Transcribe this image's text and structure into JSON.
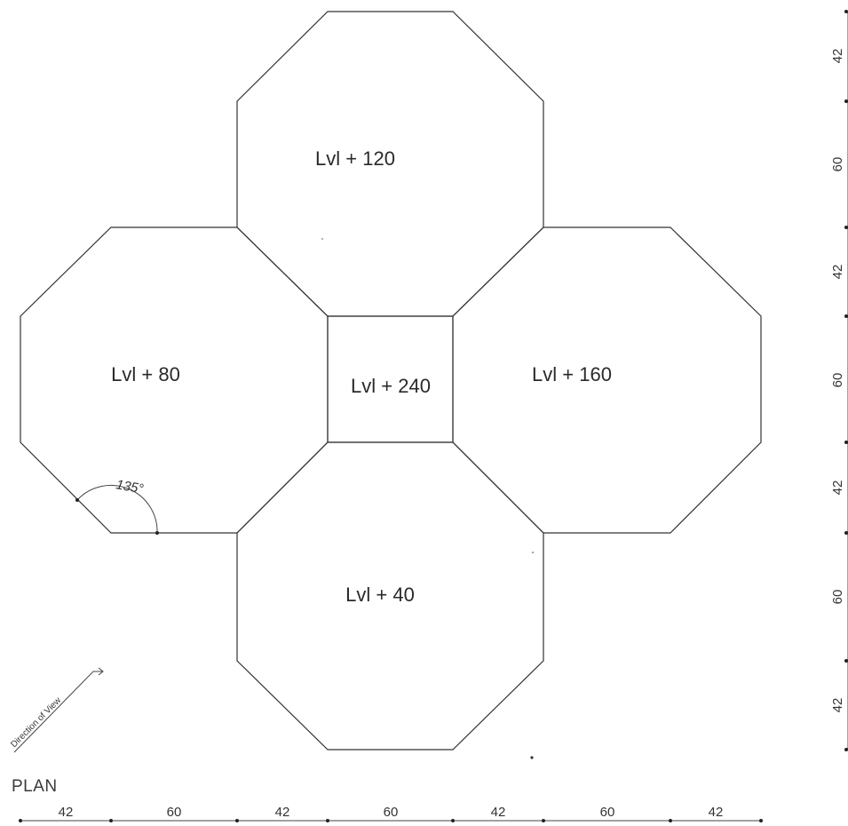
{
  "title": "PLAN",
  "rooms": {
    "top": "Lvl + 120",
    "left": "Lvl + 80",
    "center": "Lvl + 240",
    "right": "Lvl + 160",
    "bottom": "Lvl + 40"
  },
  "angle_label": "135°",
  "direction_label": "Direction of View",
  "dimensions": {
    "bottom": [
      "42",
      "60",
      "42",
      "60",
      "42",
      "60",
      "42"
    ],
    "right": [
      "42",
      "60",
      "42",
      "60",
      "42",
      "60",
      "42"
    ]
  }
}
